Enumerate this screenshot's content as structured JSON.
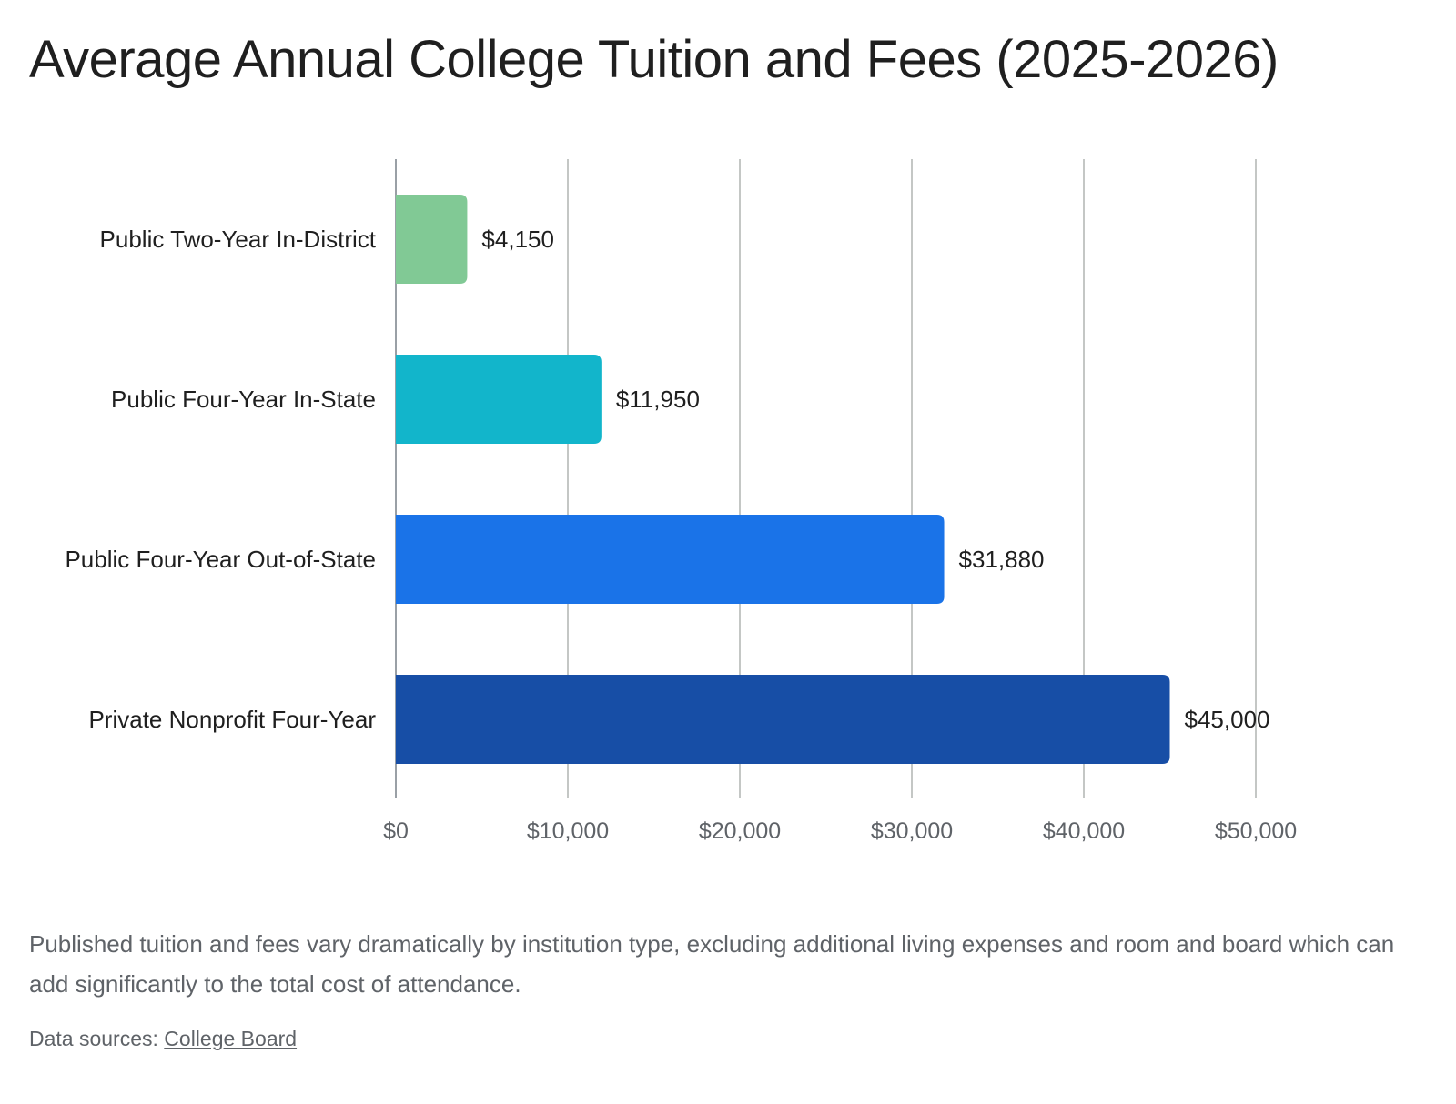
{
  "chart_data": {
    "type": "bar",
    "orientation": "horizontal",
    "title": "Average Annual College Tuition and Fees (2025-2026)",
    "categories": [
      "Public Two-Year In-District",
      "Public Four-Year In-State",
      "Public Four-Year Out-of-State",
      "Private Nonprofit Four-Year"
    ],
    "values": [
      4150,
      11950,
      31880,
      45000
    ],
    "value_labels": [
      "$4,150",
      "$11,950",
      "$31,880",
      "$45,000"
    ],
    "colors": [
      "#81c995",
      "#12b5cb",
      "#1a73e8",
      "#174ea6"
    ],
    "xlim": [
      0,
      50000
    ],
    "x_ticks": [
      0,
      10000,
      20000,
      30000,
      40000,
      50000
    ],
    "x_tick_labels": [
      "$0",
      "$10,000",
      "$20,000",
      "$30,000",
      "$40,000",
      "$50,000"
    ],
    "grid": true,
    "legend": "none"
  },
  "caption": "Published tuition and fees vary dramatically by institution type, excluding additional living expenses and room and board which can add significantly to the total cost of attendance.",
  "sources": {
    "prefix": "Data sources:",
    "link_label": "College Board"
  }
}
